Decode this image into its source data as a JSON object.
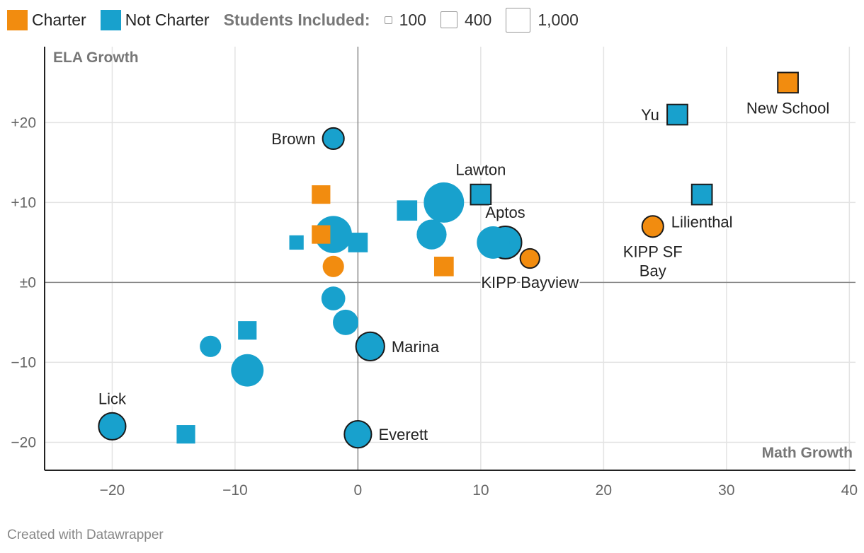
{
  "legend": {
    "categories": [
      {
        "label": "Charter",
        "color": "#f28c0f"
      },
      {
        "label": "Not Charter",
        "color": "#18a1cd"
      }
    ],
    "size_title": "Students Included:",
    "sizes": [
      {
        "label": "100",
        "students": 100
      },
      {
        "label": "400",
        "students": 400
      },
      {
        "label": "1,000",
        "students": 1000
      }
    ]
  },
  "footer": "Created with Datawrapper",
  "chart_data": {
    "type": "scatter",
    "xlabel": "Math Growth",
    "ylabel": "ELA Growth",
    "xlim": [
      -25.5,
      40.5
    ],
    "ylim": [
      -23.5,
      29.5
    ],
    "x_ticks": [
      -20,
      -10,
      0,
      10,
      20,
      30,
      40
    ],
    "x_tick_labels": [
      "−20",
      "−10",
      "0",
      "10",
      "20",
      "30",
      "40"
    ],
    "y_ticks": [
      20,
      10,
      0,
      -10,
      -20
    ],
    "y_tick_labels": [
      "+20",
      "+10",
      "±0",
      "−10",
      "−20"
    ],
    "points": [
      {
        "x": 35,
        "y": 25,
        "category": "Charter",
        "shape": "square",
        "students": 300,
        "highlight": true,
        "label": "New School",
        "label_pos": "below"
      },
      {
        "x": 26,
        "y": 21,
        "category": "Not Charter",
        "shape": "square",
        "students": 300,
        "highlight": true,
        "label": "Yu",
        "label_pos": "left"
      },
      {
        "x": 28,
        "y": 11,
        "category": "Not Charter",
        "shape": "square",
        "students": 300,
        "highlight": true,
        "label": "Lilienthal",
        "label_pos": "below-left"
      },
      {
        "x": 24,
        "y": 7,
        "category": "Charter",
        "shape": "circle",
        "students": 280,
        "highlight": true,
        "label": "KIPP SF Bay",
        "label_pos": "below"
      },
      {
        "x": 14,
        "y": 3,
        "category": "Charter",
        "shape": "circle",
        "students": 230,
        "highlight": true,
        "label": "KIPP Bayview",
        "label_pos": "below"
      },
      {
        "x": 10,
        "y": 11,
        "category": "Not Charter",
        "shape": "square",
        "students": 300,
        "highlight": true,
        "label": "Lawton",
        "label_pos": "above"
      },
      {
        "x": 12,
        "y": 5,
        "category": "Not Charter",
        "shape": "circle",
        "students": 650,
        "highlight": true,
        "label": "Aptos",
        "label_pos": "above"
      },
      {
        "x": 11,
        "y": 5,
        "category": "Not Charter",
        "shape": "circle",
        "students": 650,
        "highlight": false
      },
      {
        "x": -2,
        "y": 18,
        "category": "Not Charter",
        "shape": "circle",
        "students": 280,
        "highlight": true,
        "label": "Brown",
        "label_pos": "left"
      },
      {
        "x": 7,
        "y": 10,
        "category": "Not Charter",
        "shape": "circle",
        "students": 1000,
        "highlight": false
      },
      {
        "x": 4,
        "y": 9,
        "category": "Not Charter",
        "shape": "square",
        "students": 300,
        "highlight": false
      },
      {
        "x": 6,
        "y": 6,
        "category": "Not Charter",
        "shape": "circle",
        "students": 550,
        "highlight": false
      },
      {
        "x": -2,
        "y": 6,
        "category": "Not Charter",
        "shape": "circle",
        "students": 850,
        "highlight": false
      },
      {
        "x": 0,
        "y": 5,
        "category": "Not Charter",
        "shape": "square",
        "students": 280,
        "highlight": false
      },
      {
        "x": -5,
        "y": 5,
        "category": "Not Charter",
        "shape": "square",
        "students": 150,
        "highlight": false
      },
      {
        "x": -3,
        "y": 11,
        "category": "Charter",
        "shape": "square",
        "students": 250,
        "highlight": false
      },
      {
        "x": -3,
        "y": 6,
        "category": "Charter",
        "shape": "square",
        "students": 250,
        "highlight": false
      },
      {
        "x": -2,
        "y": 2,
        "category": "Charter",
        "shape": "circle",
        "students": 280,
        "highlight": false
      },
      {
        "x": 7,
        "y": 2,
        "category": "Charter",
        "shape": "square",
        "students": 280,
        "highlight": false
      },
      {
        "x": -2,
        "y": -2,
        "category": "Not Charter",
        "shape": "circle",
        "students": 350,
        "highlight": false
      },
      {
        "x": -1,
        "y": -5,
        "category": "Not Charter",
        "shape": "circle",
        "students": 400,
        "highlight": false
      },
      {
        "x": 1,
        "y": -8,
        "category": "Not Charter",
        "shape": "circle",
        "students": 500,
        "highlight": true,
        "label": "Marina",
        "label_pos": "right"
      },
      {
        "x": -9,
        "y": -6,
        "category": "Not Charter",
        "shape": "square",
        "students": 250,
        "highlight": false
      },
      {
        "x": -12,
        "y": -8,
        "category": "Not Charter",
        "shape": "circle",
        "students": 280,
        "highlight": false
      },
      {
        "x": -9,
        "y": -11,
        "category": "Not Charter",
        "shape": "circle",
        "students": 650,
        "highlight": false
      },
      {
        "x": -20,
        "y": -18,
        "category": "Not Charter",
        "shape": "circle",
        "students": 450,
        "highlight": true,
        "label": "Lick",
        "label_pos": "above"
      },
      {
        "x": -14,
        "y": -19,
        "category": "Not Charter",
        "shape": "square",
        "students": 250,
        "highlight": false
      },
      {
        "x": 0,
        "y": -19,
        "category": "Not Charter",
        "shape": "circle",
        "students": 450,
        "highlight": true,
        "label": "Everett",
        "label_pos": "right"
      }
    ]
  }
}
